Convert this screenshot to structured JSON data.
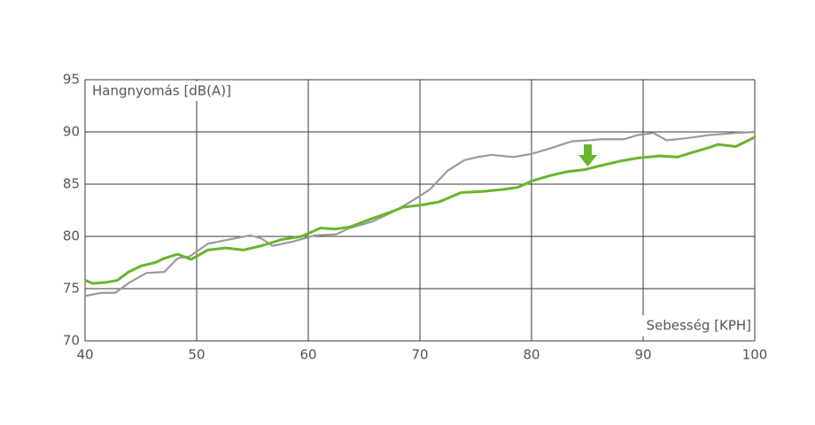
{
  "chart_data": {
    "type": "line",
    "y_label": "Hangnyomás [dB(A)]",
    "x_label": "Sebesség [KPH]",
    "xlim": [
      40,
      100
    ],
    "xticks": [
      40,
      50,
      60,
      70,
      80,
      90,
      100
    ],
    "ylim": [
      70,
      95
    ],
    "yticks": [
      70,
      75,
      80,
      85,
      90,
      95
    ],
    "grid": true,
    "series": [
      {
        "color": "#9a9a9a",
        "x": [
          40,
          41.5,
          42.7,
          44,
          45.5,
          47.1,
          48.3,
          49.4,
          51,
          52.9,
          54.8,
          55.8,
          56.8,
          58.6,
          60.6,
          62.5,
          63.7,
          65.7,
          67.7,
          69.3,
          70.9,
          72.5,
          74,
          75.2,
          76.4,
          78.4,
          80,
          81.6,
          83.6,
          85.2,
          86.3,
          88.3,
          89.5,
          90.9,
          92.1,
          93.9,
          95.9,
          98.3,
          100
        ],
        "values": [
          74.3,
          74.6,
          74.6,
          75.6,
          76.5,
          76.6,
          77.9,
          78.1,
          79.3,
          79.7,
          80.1,
          79.8,
          79.1,
          79.5,
          80.1,
          80.2,
          80.8,
          81.4,
          82.4,
          83.4,
          84.5,
          86.3,
          87.3,
          87.6,
          87.8,
          87.6,
          87.9,
          88.4,
          89.1,
          89.2,
          89.3,
          89.3,
          89.7,
          89.9,
          89.2,
          89.4,
          89.7,
          89.9,
          90
        ]
      },
      {
        "color": "#6ab42d",
        "x": [
          40,
          40.7,
          41.9,
          42.9,
          43.9,
          45.1,
          46.3,
          47.1,
          48.3,
          49.5,
          51,
          52.6,
          54.2,
          55.8,
          57.6,
          59.4,
          61.1,
          62.4,
          63.7,
          65.7,
          67.3,
          68.5,
          70.1,
          71.7,
          73.7,
          75.6,
          77.5,
          78.8,
          80,
          81.6,
          83.2,
          84.8,
          86.3,
          87.9,
          89.5,
          91.5,
          93.1,
          94.3,
          95.9,
          96.7,
          98.3,
          100
        ],
        "values": [
          75.8,
          75.5,
          75.6,
          75.8,
          76.6,
          77.2,
          77.5,
          77.9,
          78.3,
          77.8,
          78.7,
          78.9,
          78.7,
          79.1,
          79.7,
          80,
          80.8,
          80.7,
          80.9,
          81.7,
          82.3,
          82.8,
          83,
          83.3,
          84.2,
          84.3,
          84.5,
          84.7,
          85.3,
          85.8,
          86.2,
          86.4,
          86.8,
          87.2,
          87.5,
          87.7,
          87.6,
          88,
          88.5,
          88.8,
          88.6,
          89.5
        ]
      }
    ]
  }
}
